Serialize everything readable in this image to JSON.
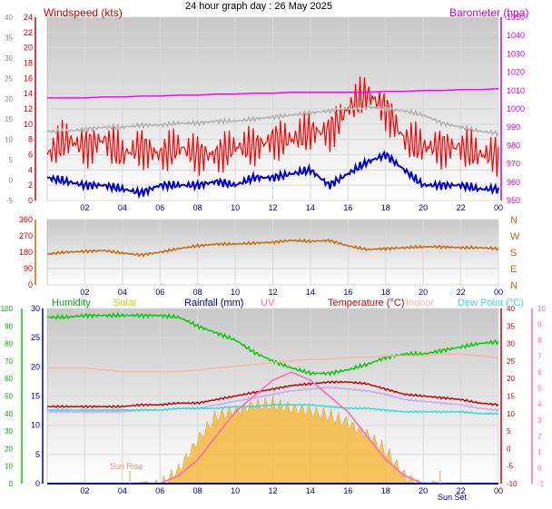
{
  "page": {
    "title": "24 hour graph day : 26 May 2025"
  },
  "x_ticks": [
    "02",
    "04",
    "06",
    "08",
    "10",
    "12",
    "14",
    "16",
    "18",
    "20",
    "22",
    "00"
  ],
  "chart_data": [
    {
      "type": "line",
      "name": "wind-barometer",
      "labels": {
        "left": "Windspeed (kts)",
        "right": "Barometer (hpa)"
      },
      "axis_outer_left": {
        "range": [
          -5,
          40
        ],
        "ticks": [
          -5,
          0,
          5,
          10,
          15,
          20,
          25,
          30,
          35,
          40
        ]
      },
      "axis_left": {
        "range": [
          0,
          24
        ],
        "ticks": [
          0,
          2,
          4,
          6,
          8,
          10,
          12,
          14,
          16,
          18,
          20,
          22,
          24
        ]
      },
      "axis_right": {
        "range": [
          950,
          1050
        ],
        "ticks": [
          950,
          960,
          970,
          980,
          990,
          1000,
          1010,
          1020,
          1030,
          1040,
          1050
        ]
      },
      "x": [
        0,
        1,
        2,
        3,
        4,
        5,
        6,
        7,
        8,
        9,
        10,
        11,
        12,
        13,
        14,
        15,
        16,
        17,
        18,
        19,
        20,
        21,
        22,
        23,
        24
      ],
      "series": [
        {
          "key": "gust",
          "color": "#ff0000",
          "axis": "left",
          "values": [
            6,
            8,
            7,
            8,
            6,
            7,
            6,
            7,
            6,
            6,
            7,
            7,
            8,
            8,
            9,
            9,
            12,
            14,
            12,
            8,
            7,
            7,
            7,
            6,
            6
          ]
        },
        {
          "key": "wind",
          "color": "#0000cc",
          "axis": "left",
          "values": [
            3,
            2.5,
            2,
            2,
            1.5,
            1,
            2,
            2,
            2,
            2.5,
            2,
            3,
            3,
            3.5,
            4,
            2,
            3.5,
            5,
            6,
            4,
            2,
            2,
            2,
            1.5,
            1.5
          ]
        },
        {
          "key": "temp_outer",
          "color": "#b0b0b0",
          "axis": "outer_left",
          "values": [
            12,
            12,
            12.5,
            13,
            13,
            13.5,
            13.5,
            14,
            14,
            14.5,
            14.5,
            15,
            15.5,
            16,
            16.5,
            17,
            17.5,
            18,
            17.5,
            17,
            16,
            14,
            13,
            12,
            11.5
          ]
        },
        {
          "key": "barometer",
          "color": "#ff00ff",
          "axis": "right",
          "values": [
            1006,
            1006,
            1006,
            1006.5,
            1006.5,
            1007,
            1007,
            1007.5,
            1007.5,
            1008,
            1008,
            1008.5,
            1008.5,
            1009,
            1009,
            1009,
            1009,
            1009,
            1009.5,
            1009.5,
            1010,
            1010,
            1010.5,
            1010.5,
            1011
          ]
        }
      ]
    },
    {
      "type": "scatter",
      "name": "wind-direction",
      "axis_left": {
        "range": [
          0,
          360
        ],
        "ticks": [
          0,
          90,
          180,
          270,
          360
        ]
      },
      "compass": [
        "N",
        "W",
        "S",
        "E",
        "N"
      ],
      "x": [
        0,
        1,
        2,
        3,
        4,
        5,
        6,
        7,
        8,
        9,
        10,
        11,
        12,
        13,
        14,
        15,
        16,
        17,
        18,
        19,
        20,
        21,
        22,
        23,
        24
      ],
      "series": [
        {
          "key": "direction",
          "color": "#cc6600",
          "values": [
            170,
            180,
            185,
            190,
            175,
            165,
            180,
            200,
            215,
            225,
            225,
            230,
            235,
            245,
            240,
            245,
            215,
            195,
            200,
            205,
            210,
            210,
            205,
            205,
            200
          ]
        }
      ]
    },
    {
      "type": "area",
      "name": "humidity-temperature",
      "labels": {
        "humidity": "Humidity",
        "solar": "Solar",
        "rainfall": "Rainfall (mm)",
        "uv": "UV",
        "temperature": "Temperature (°C)",
        "indoor": "Indoor",
        "dewpoint": "Dew Point (°C)"
      },
      "axis_humidity": {
        "range": [
          0,
          100
        ],
        "ticks": [
          0,
          10,
          20,
          30,
          40,
          50,
          60,
          70,
          80,
          90,
          100
        ]
      },
      "axis_rain": {
        "range": [
          0,
          30
        ],
        "ticks": [
          0,
          5,
          10,
          15,
          20,
          25,
          30
        ]
      },
      "axis_temp": {
        "range": [
          -10,
          40
        ],
        "ticks": [
          -10,
          -5,
          0,
          5,
          10,
          15,
          20,
          25,
          30,
          35,
          40
        ]
      },
      "axis_uv": {
        "range": [
          -1,
          10
        ],
        "ticks": [
          -1,
          0,
          1,
          2,
          3,
          4,
          5,
          6,
          7,
          8,
          9,
          10
        ]
      },
      "annotations": [
        "Sun Rise",
        "Sun Set"
      ],
      "x": [
        0,
        1,
        2,
        3,
        4,
        5,
        6,
        7,
        8,
        9,
        10,
        11,
        12,
        13,
        14,
        15,
        16,
        17,
        18,
        19,
        20,
        21,
        22,
        23,
        24
      ],
      "series": [
        {
          "key": "humidity",
          "color": "#00cc00",
          "axis": "humidity",
          "values": [
            95,
            95,
            96,
            96,
            96,
            96,
            96,
            95,
            90,
            86,
            82,
            75,
            70,
            66,
            63,
            63,
            65,
            68,
            72,
            74,
            74,
            76,
            78,
            80,
            81
          ]
        },
        {
          "key": "indoor",
          "color": "#f4b8a8",
          "axis": "temp",
          "values": [
            23,
            23,
            23,
            22.5,
            22,
            22,
            22,
            22,
            22.5,
            23,
            23.5,
            24,
            24.5,
            25,
            25.5,
            25.5,
            26,
            26,
            26.5,
            26.5,
            26.5,
            27,
            27,
            26.5,
            26
          ]
        },
        {
          "key": "temperature",
          "color": "#cc0000",
          "axis": "temp",
          "values": [
            12,
            12,
            12,
            12,
            12,
            12.5,
            12.5,
            13,
            13,
            14,
            15,
            16,
            17,
            18,
            18.5,
            19,
            19,
            18.5,
            17,
            15.5,
            15,
            14.5,
            14,
            13,
            12.5
          ]
        },
        {
          "key": "apparent",
          "color": "#c8a8ff",
          "axis": "temp",
          "values": [
            10.5,
            10.5,
            10.5,
            10.5,
            10.5,
            11,
            11,
            11.5,
            11.5,
            12.5,
            13.5,
            14.5,
            15.5,
            16.5,
            17,
            17.5,
            17,
            16.5,
            15.5,
            14,
            13.5,
            13,
            12.5,
            11.5,
            11
          ]
        },
        {
          "key": "dewpoint",
          "color": "#33dddd",
          "axis": "temp",
          "values": [
            11,
            11,
            11,
            11,
            11,
            11,
            11,
            11.5,
            11.5,
            11.5,
            12,
            12,
            12.5,
            12.5,
            12.5,
            12,
            11.5,
            11.5,
            11,
            10.5,
            10.5,
            10.5,
            10.5,
            10,
            10
          ]
        },
        {
          "key": "solar",
          "color": "#f5b840",
          "axis": "rain",
          "values": [
            0,
            0,
            0,
            0,
            0,
            0.2,
            1,
            4,
            9,
            13,
            14,
            15,
            15,
            14.5,
            14,
            13,
            12,
            10,
            7,
            3,
            1,
            0,
            0,
            0,
            0
          ]
        },
        {
          "key": "uv",
          "color": "#ff66bb",
          "axis": "uv",
          "values": [
            -1,
            -1,
            -1,
            -1,
            -1,
            -1,
            -1,
            -0.5,
            0.5,
            2,
            3.5,
            4.5,
            5.5,
            6,
            5.5,
            4.5,
            3.5,
            2,
            0.5,
            -0.5,
            -1,
            -1,
            -1,
            -1,
            -1
          ]
        },
        {
          "key": "rainfall",
          "color": "#0000aa",
          "axis": "rain",
          "values": [
            0,
            0,
            0,
            0,
            0,
            0,
            0,
            0,
            0,
            0,
            0,
            0,
            0,
            0,
            0,
            0,
            0,
            0,
            0,
            0,
            0,
            0,
            0,
            0,
            0
          ]
        }
      ]
    }
  ]
}
